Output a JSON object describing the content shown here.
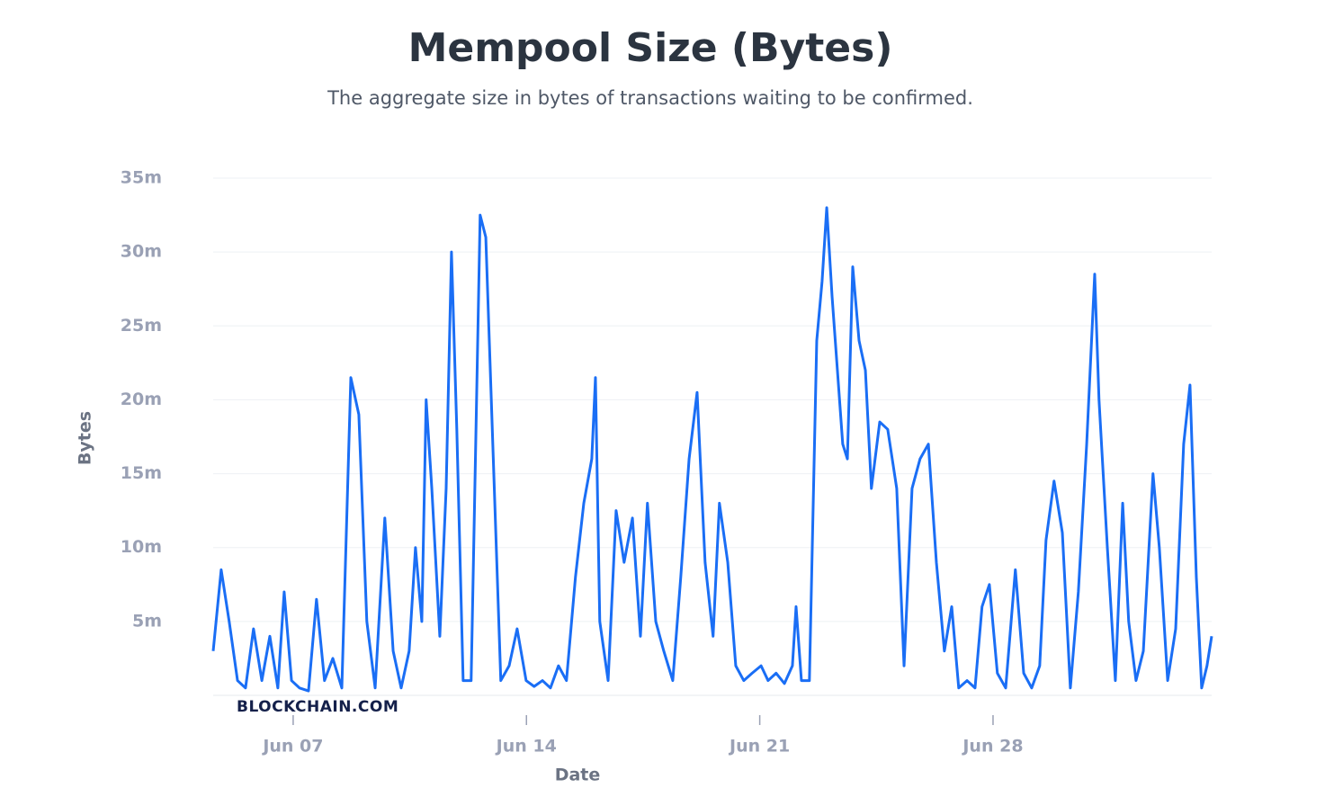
{
  "chart_data": {
    "type": "line",
    "title": "Mempool Size (Bytes)",
    "subtitle": "The aggregate size in bytes of transactions waiting to be confirmed.",
    "x_label": "Date",
    "y_label": "Bytes",
    "watermark": "BLOCKCHAIN.COM",
    "xlim": [
      4.6,
      34.56
    ],
    "xticks": [
      {
        "value": 7,
        "label": "Jun 07"
      },
      {
        "value": 14,
        "label": "Jun 14"
      },
      {
        "value": 21,
        "label": "Jun 21"
      },
      {
        "value": 28,
        "label": "Jun 28"
      }
    ],
    "ylim": [
      0,
      35000000
    ],
    "yticks": [
      {
        "value": 5000000,
        "label": "5m"
      },
      {
        "value": 10000000,
        "label": "10m"
      },
      {
        "value": 15000000,
        "label": "15m"
      },
      {
        "value": 20000000,
        "label": "20m"
      },
      {
        "value": 25000000,
        "label": "25m"
      },
      {
        "value": 30000000,
        "label": "30m"
      },
      {
        "value": 35000000,
        "label": "35m"
      }
    ],
    "grid": true,
    "x": [
      4.6,
      4.84,
      5.08,
      5.33,
      5.57,
      5.81,
      6.06,
      6.3,
      6.54,
      6.73,
      6.95,
      7.19,
      7.46,
      7.7,
      7.94,
      8.19,
      8.46,
      8.73,
      8.97,
      9.21,
      9.46,
      9.75,
      10.0,
      10.24,
      10.48,
      10.67,
      10.86,
      10.99,
      11.16,
      11.4,
      11.59,
      11.75,
      11.91,
      12.1,
      12.34,
      12.61,
      12.78,
      13.02,
      13.23,
      13.48,
      13.72,
      13.99,
      14.23,
      14.48,
      14.72,
      14.96,
      15.2,
      15.47,
      15.72,
      15.96,
      16.07,
      16.2,
      16.45,
      16.69,
      16.93,
      17.18,
      17.42,
      17.63,
      17.88,
      18.12,
      18.39,
      18.63,
      18.88,
      19.12,
      19.36,
      19.6,
      19.79,
      20.04,
      20.28,
      20.52,
      20.77,
      21.04,
      21.25,
      21.49,
      21.74,
      21.98,
      22.09,
      22.25,
      22.49,
      22.71,
      22.87,
      23.01,
      23.17,
      23.33,
      23.49,
      23.63,
      23.79,
      23.98,
      24.17,
      24.35,
      24.6,
      24.84,
      25.11,
      25.33,
      25.57,
      25.81,
      26.06,
      26.3,
      26.54,
      26.76,
      26.97,
      27.22,
      27.46,
      27.67,
      27.89,
      28.13,
      28.38,
      28.67,
      28.92,
      29.16,
      29.4,
      29.59,
      29.83,
      30.08,
      30.32,
      30.56,
      30.81,
      31.05,
      31.18,
      31.43,
      31.67,
      31.89,
      32.07,
      32.29,
      32.51,
      32.8,
      32.99,
      33.24,
      33.48,
      33.72,
      33.91,
      34.1,
      34.26,
      34.42,
      34.56
    ],
    "series": [
      {
        "name": "Bytes",
        "color": "#1a6ef5",
        "values": [
          3000000.0,
          8500000.0,
          5000000.0,
          1000000.0,
          500000.0,
          4500000.0,
          1000000.0,
          4000000.0,
          500000.0,
          7000000.0,
          1000000.0,
          500000.0,
          300000.0,
          6500000.0,
          1000000.0,
          2500000.0,
          500000.0,
          21500000.0,
          19000000.0,
          5000000.0,
          500000.0,
          12000000.0,
          3000000.0,
          500000.0,
          3000000.0,
          10000000.0,
          5000000.0,
          20000000.0,
          14000000.0,
          4000000.0,
          14000000.0,
          30000000.0,
          18000000.0,
          1000000.0,
          1000000.0,
          32500000.0,
          31000000.0,
          15000000.0,
          1000000.0,
          2000000.0,
          4500000.0,
          1000000.0,
          600000.0,
          1000000.0,
          500000.0,
          2000000.0,
          1000000.0,
          8000000.0,
          13000000.0,
          16000000.0,
          21500000.0,
          5000000.0,
          1000000.0,
          12500000.0,
          9000000.0,
          12000000.0,
          4000000.0,
          13000000.0,
          5000000.0,
          3000000.0,
          1000000.0,
          8000000.0,
          16000000.0,
          20500000.0,
          9000000.0,
          4000000.0,
          13000000.0,
          9000000.0,
          2000000.0,
          1000000.0,
          1500000.0,
          2000000.0,
          1000000.0,
          1500000.0,
          800000.0,
          2000000.0,
          6000000.0,
          1000000.0,
          1000000.0,
          24000000.0,
          28000000.0,
          33000000.0,
          27000000.0,
          22000000.0,
          17000000.0,
          16000000.0,
          29000000.0,
          24000000.0,
          22000000.0,
          14000000.0,
          18500000.0,
          18000000.0,
          14000000.0,
          2000000.0,
          14000000.0,
          16000000.0,
          17000000.0,
          9000000.0,
          3000000.0,
          6000000.0,
          500000.0,
          1000000.0,
          500000.0,
          6000000.0,
          7500000.0,
          1500000.0,
          500000.0,
          8500000.0,
          1500000.0,
          500000.0,
          2000000.0,
          10500000.0,
          14500000.0,
          11000000.0,
          500000.0,
          7000000.0,
          17000000.0,
          28500000.0,
          20000000.0,
          10000000.0,
          1000000.0,
          13000000.0,
          5000000.0,
          1000000.0,
          3000000.0,
          15000000.0,
          10000000.0,
          1000000.0,
          4500000.0,
          17000000.0,
          21000000.0,
          8000000.0,
          500000.0,
          2000000.0,
          4000000.0
        ]
      }
    ]
  }
}
